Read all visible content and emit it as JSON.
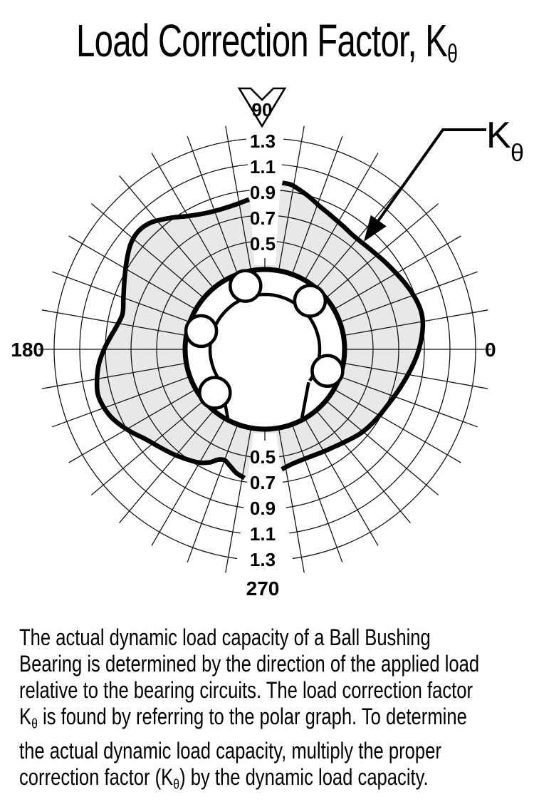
{
  "title": {
    "text": "Load Correction Factor, K",
    "subscript": "θ"
  },
  "annotation": {
    "label": "K",
    "subscript": "θ"
  },
  "chart_data": {
    "type": "polar-line",
    "title": "Load Correction Factor, Kθ",
    "legend_position": "top-right-callout",
    "grid": true,
    "angle_axis": {
      "spoke_step_deg": 10,
      "labels": {
        "right": "0",
        "top": "90",
        "left": "180",
        "bottom": "270"
      }
    },
    "radial_axis": {
      "ticks": [
        "0.5",
        "0.7",
        "0.9",
        "1.1",
        "1.3"
      ],
      "tick_values": [
        0.5,
        0.7,
        0.9,
        1.1,
        1.3
      ],
      "range": [
        0.3,
        1.4
      ],
      "tick_label_angles_deg": [
        90,
        270
      ]
    },
    "series": [
      {
        "name": "Kθ",
        "stroke": "#000000",
        "fill": "#e8e8e8",
        "gaps_deg": [
          [
            84,
            96
          ],
          [
            261,
            278
          ]
        ],
        "segments": [
          {
            "points_deg_value": [
              [
                96,
                0.83
              ],
              [
                102,
                0.805
              ],
              [
                108,
                0.8
              ],
              [
                114,
                0.815
              ],
              [
                120,
                0.855
              ],
              [
                126,
                0.92
              ],
              [
                132,
                0.985
              ],
              [
                137,
                1.005
              ],
              [
                142,
                0.985
              ],
              [
                148,
                0.93
              ],
              [
                154,
                0.875
              ],
              [
                160,
                0.83
              ],
              [
                166,
                0.8
              ],
              [
                171,
                0.825
              ],
              [
                176,
                0.87
              ],
              [
                180,
                0.91
              ],
              [
                185,
                0.955
              ],
              [
                190,
                0.985
              ],
              [
                195,
                1.005
              ],
              [
                200,
                0.99
              ],
              [
                205,
                0.955
              ],
              [
                211,
                0.89
              ],
              [
                217,
                0.82
              ],
              [
                223,
                0.775
              ],
              [
                229,
                0.74
              ],
              [
                235,
                0.705
              ],
              [
                240,
                0.675
              ],
              [
                244,
                0.635
              ],
              [
                247,
                0.59
              ],
              [
                250,
                0.575
              ],
              [
                253,
                0.6
              ],
              [
                257,
                0.645
              ],
              [
                261,
                0.67
              ]
            ]
          },
          {
            "points_deg_value": [
              [
                278,
                0.6
              ],
              [
                283,
                0.575
              ],
              [
                288,
                0.565
              ],
              [
                294,
                0.565
              ],
              [
                300,
                0.575
              ],
              [
                306,
                0.59
              ],
              [
                312,
                0.615
              ],
              [
                318,
                0.645
              ],
              [
                323,
                0.665
              ],
              [
                329,
                0.685
              ],
              [
                335,
                0.705
              ],
              [
                341,
                0.735
              ],
              [
                347,
                0.77
              ],
              [
                353,
                0.81
              ],
              [
                358,
                0.845
              ],
              [
                363,
                0.875
              ],
              [
                368,
                0.9
              ],
              [
                372,
                0.91
              ],
              [
                376,
                0.905
              ],
              [
                381,
                0.885
              ],
              [
                386,
                0.86
              ],
              [
                391,
                0.835
              ],
              [
                397,
                0.81
              ],
              [
                403,
                0.79
              ],
              [
                408,
                0.78
              ],
              [
                413,
                0.78
              ],
              [
                418,
                0.795
              ],
              [
                424,
                0.82
              ],
              [
                429,
                0.85
              ],
              [
                434,
                0.895
              ],
              [
                438,
                0.93
              ],
              [
                441,
                0.955
              ],
              [
                444,
                0.96
              ]
            ]
          }
        ]
      }
    ],
    "center_graphic": {
      "name": "ball-bushing-bearing-cross-section",
      "ball_angles_deg": [
        47,
        107,
        164,
        221,
        341
      ],
      "slot_open_from_deg": 217,
      "slot_open_to_deg": 323
    },
    "colors": {
      "grid": "#141414",
      "curve": "#000000",
      "fill": "#e8e8e8",
      "background": "#ffffff"
    }
  },
  "arrow_90_label": "90",
  "paragraph": {
    "l1": "The actual dynamic load capacity of a Ball Bushing",
    "l2": "Bearing is determined by the direction of the applied load",
    "l3": "relative to the bearing circuits. The load correction factor",
    "l4a": "K",
    "l4sub": "θ",
    "l4b": " is found by referring to the polar graph. To determine",
    "l5": "the actual dynamic load capacity, multiply the proper",
    "l6a": "correction factor (K",
    "l6sub": "θ",
    "l6b": ") by the dynamic load capacity."
  }
}
